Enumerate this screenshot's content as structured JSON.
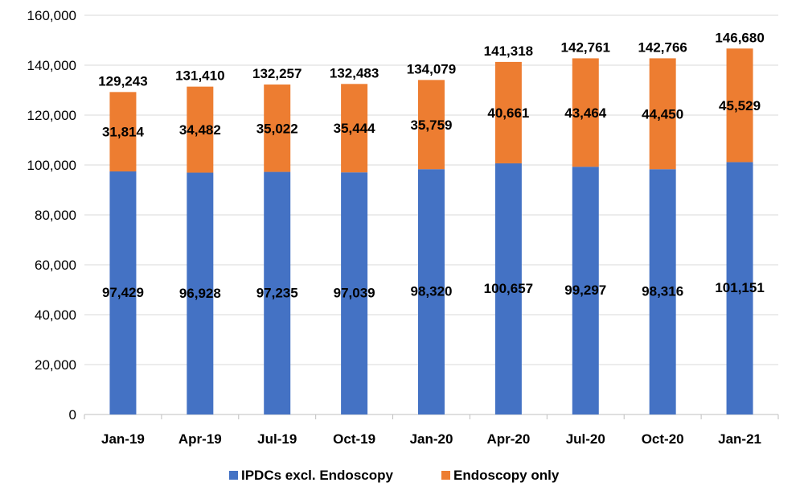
{
  "chart_data": {
    "type": "bar",
    "stacked": true,
    "title": "",
    "xlabel": "",
    "ylabel": "",
    "ylim": [
      0,
      160000
    ],
    "ytick_step": 20000,
    "ytick_labels": [
      "0",
      "20,000",
      "40,000",
      "60,000",
      "80,000",
      "100,000",
      "120,000",
      "140,000",
      "160,000"
    ],
    "grid": true,
    "legend_position": "bottom",
    "categories": [
      "Jan-19",
      "Apr-19",
      "Jul-19",
      "Oct-19",
      "Jan-20",
      "Apr-20",
      "Jul-20",
      "Oct-20",
      "Jan-21"
    ],
    "series": [
      {
        "name": "IPDCs excl. Endoscopy",
        "color": "#4472C4",
        "values": [
          97429,
          96928,
          97235,
          97039,
          98320,
          100657,
          99297,
          98316,
          101151
        ],
        "labels": [
          "97,429",
          "96,928",
          "97,235",
          "97,039",
          "98,320",
          "100,657",
          "99,297",
          "98,316",
          "101,151"
        ]
      },
      {
        "name": "Endoscopy only",
        "color": "#ED7D31",
        "values": [
          31814,
          34482,
          35022,
          35444,
          35759,
          40661,
          43464,
          44450,
          45529
        ],
        "labels": [
          "31,814",
          "34,482",
          "35,022",
          "35,444",
          "35,759",
          "40,661",
          "43,464",
          "44,450",
          "45,529"
        ]
      }
    ],
    "totals": [
      129243,
      131410,
      132257,
      132483,
      134079,
      141318,
      142761,
      142766,
      146680
    ],
    "total_labels": [
      "129,243",
      "131,410",
      "132,257",
      "132,483",
      "134,079",
      "141,318",
      "142,761",
      "142,766",
      "146,680"
    ]
  }
}
